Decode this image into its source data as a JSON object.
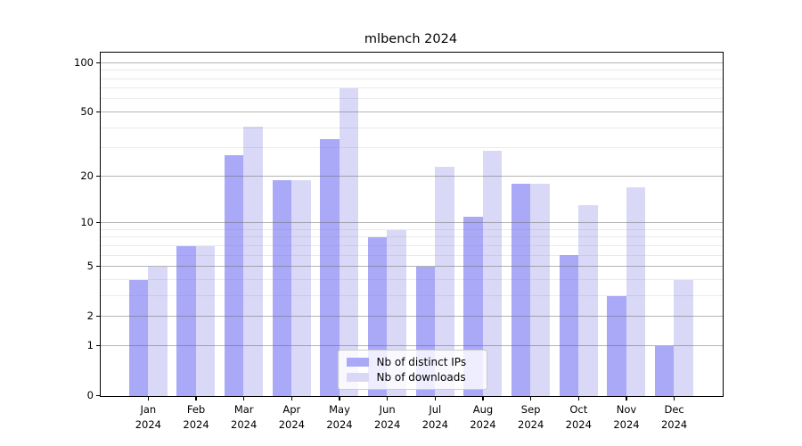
{
  "chart_data": {
    "type": "bar",
    "title": "mlbench 2024",
    "categories": [
      "Jan",
      "Feb",
      "Mar",
      "Apr",
      "May",
      "Jun",
      "Jul",
      "Aug",
      "Sep",
      "Oct",
      "Nov",
      "Dec"
    ],
    "year": "2024",
    "series": [
      {
        "name": "Nb of distinct IPs",
        "color": "#a9a9f7",
        "values": [
          4,
          7,
          27,
          19,
          34,
          8,
          5,
          11,
          18,
          6,
          3,
          1
        ]
      },
      {
        "name": "Nb of downloads",
        "color": "#d9d9f7",
        "values": [
          5,
          7,
          41,
          19,
          70,
          9,
          23,
          29,
          18,
          13,
          17,
          4
        ]
      }
    ],
    "y_scale": "log1p",
    "y_tick_labels": [
      "0",
      "1",
      "2",
      "5",
      "10",
      "20",
      "50",
      "100"
    ],
    "y_tick_values": [
      0,
      1,
      2,
      5,
      10,
      20,
      50,
      100
    ],
    "y_minor_gridlines": [
      3,
      4,
      6,
      7,
      8,
      9,
      30,
      40,
      60,
      70,
      80,
      90
    ],
    "ylim": [
      0,
      115
    ],
    "grid": true,
    "legend_position": "lower center",
    "axis_color": "#000000",
    "background_color": "#ffffff"
  }
}
